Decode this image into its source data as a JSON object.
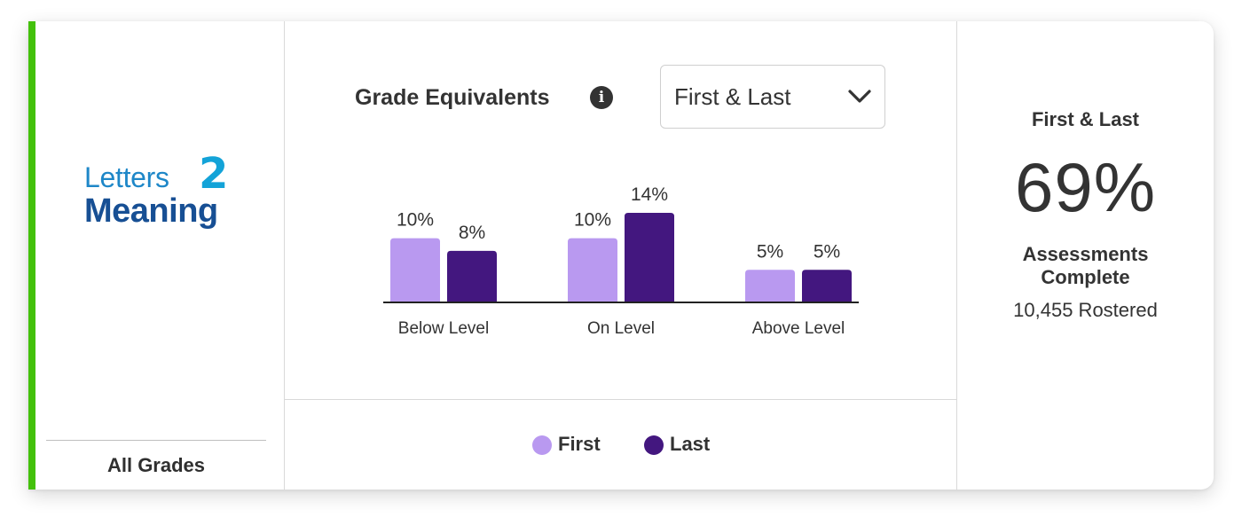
{
  "brand": {
    "logo_word1": "Letters",
    "logo_number": "2",
    "logo_word2": "Meaning"
  },
  "filter": {
    "grade_label": "All Grades"
  },
  "panel": {
    "title": "Grade Equivalents",
    "info_icon": "info-icon",
    "dropdown_value": "First & Last",
    "dropdown_icon": "chevron-down-icon"
  },
  "chart_data": {
    "type": "bar",
    "title": "Grade Equivalents",
    "categories": [
      "Below Level",
      "On Level",
      "Above Level"
    ],
    "series": [
      {
        "name": "First",
        "values": [
          10,
          10,
          5
        ],
        "labels": [
          "10%",
          "10%",
          "5%"
        ],
        "color": "#b999f0"
      },
      {
        "name": "Last",
        "values": [
          8,
          14,
          5
        ],
        "labels": [
          "8%",
          "14%",
          "5%"
        ],
        "color": "#43177f"
      }
    ],
    "unit": "%",
    "ylim": [
      0,
      14
    ],
    "grid": false,
    "legend": "bottom"
  },
  "legend": {
    "first_label": "First",
    "last_label": "Last"
  },
  "summary": {
    "subtitle": "First & Last",
    "percent": "69%",
    "label_line1": "Assessments",
    "label_line2": "Complete",
    "rostered": "10,455 Rostered"
  },
  "colors": {
    "accent": "#43c10b",
    "first": "#b999f0",
    "last": "#43177f"
  }
}
